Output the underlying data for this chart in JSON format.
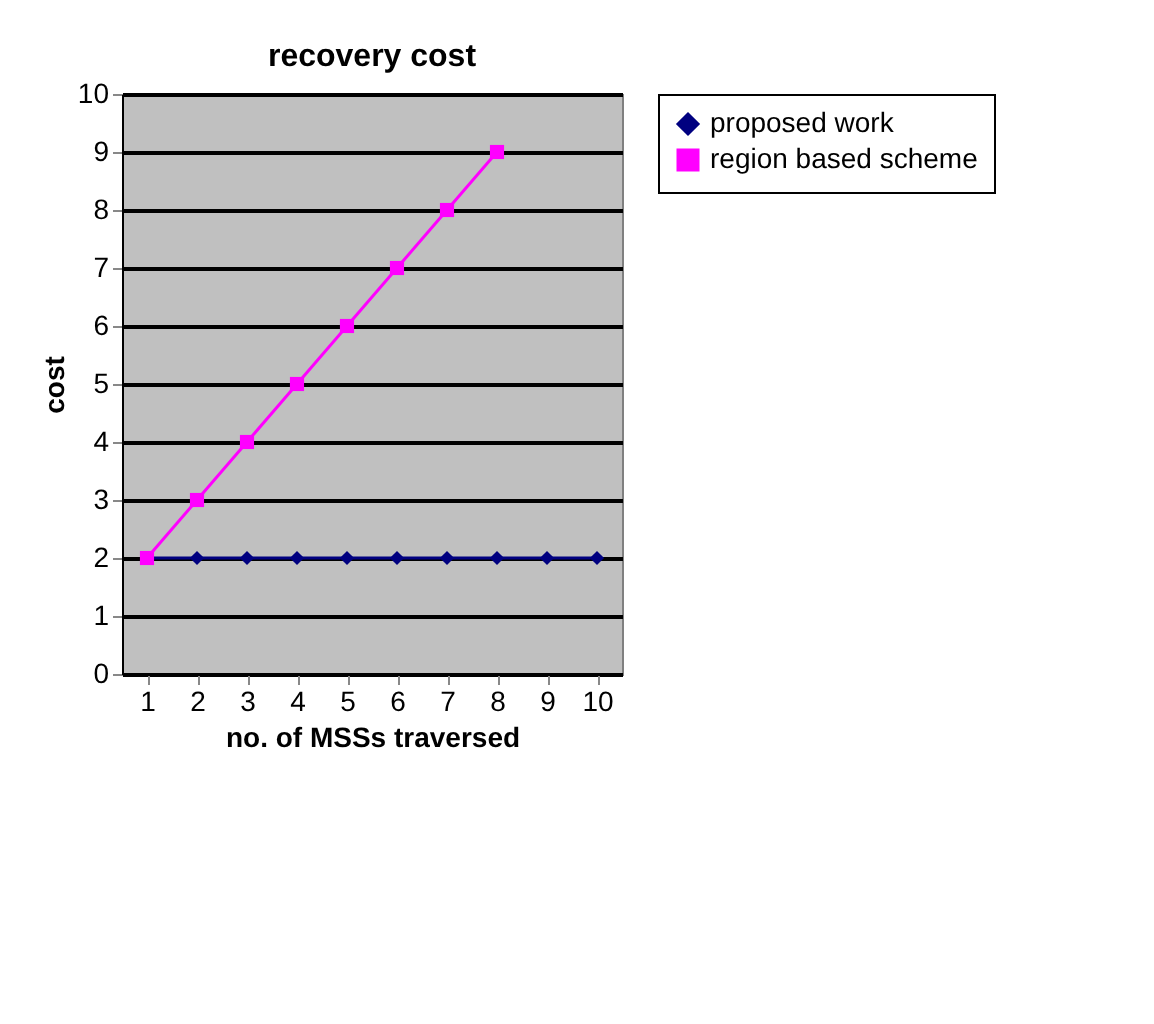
{
  "chart_data": {
    "type": "line",
    "title": "recovery cost",
    "xlabel": "no. of MSSs traversed",
    "ylabel": "cost",
    "categories": [
      "1",
      "2",
      "3",
      "4",
      "5",
      "6",
      "7",
      "8",
      "9",
      "10"
    ],
    "series": [
      {
        "name": "proposed work",
        "color": "#000080",
        "marker": "diamond",
        "values": [
          2,
          2,
          2,
          2,
          2,
          2,
          2,
          2,
          2,
          2
        ]
      },
      {
        "name": "region based scheme",
        "color": "#ff00ff",
        "marker": "square",
        "values": [
          2,
          3,
          4,
          5,
          6,
          7,
          8,
          9,
          null,
          null
        ]
      }
    ],
    "ylim": [
      0,
      10
    ],
    "yticks": [
      0,
      1,
      2,
      3,
      4,
      5,
      6,
      7,
      8,
      9,
      10
    ],
    "grid": "y",
    "legend": "right"
  }
}
